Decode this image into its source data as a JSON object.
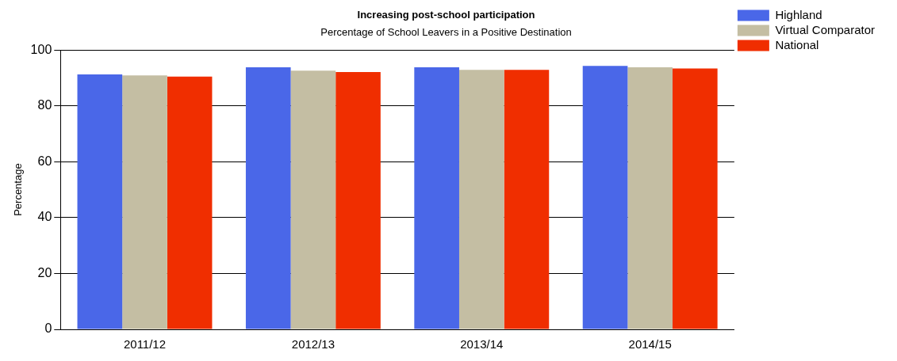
{
  "chart_data": {
    "type": "bar",
    "title": "Increasing post-school participation",
    "subtitle": "Percentage of School Leavers in a Positive Destination",
    "ylabel": "Percentage",
    "categories": [
      "2011/12",
      "2012/13",
      "2013/14",
      "2014/15"
    ],
    "series": [
      {
        "name": "Highland",
        "color": "#4a67e8",
        "values": [
          91.3,
          93.8,
          93.8,
          94.3
        ]
      },
      {
        "name": "Virtual Comparator",
        "color": "#c4bea3",
        "values": [
          90.9,
          92.6,
          92.9,
          93.8
        ]
      },
      {
        "name": "National",
        "color": "#f02e00",
        "values": [
          90.5,
          92.1,
          92.9,
          93.4
        ]
      }
    ],
    "ylim": [
      0,
      100
    ],
    "yticks": [
      0,
      20,
      40,
      60,
      80,
      100
    ],
    "grid": "y",
    "legend": "top right"
  }
}
